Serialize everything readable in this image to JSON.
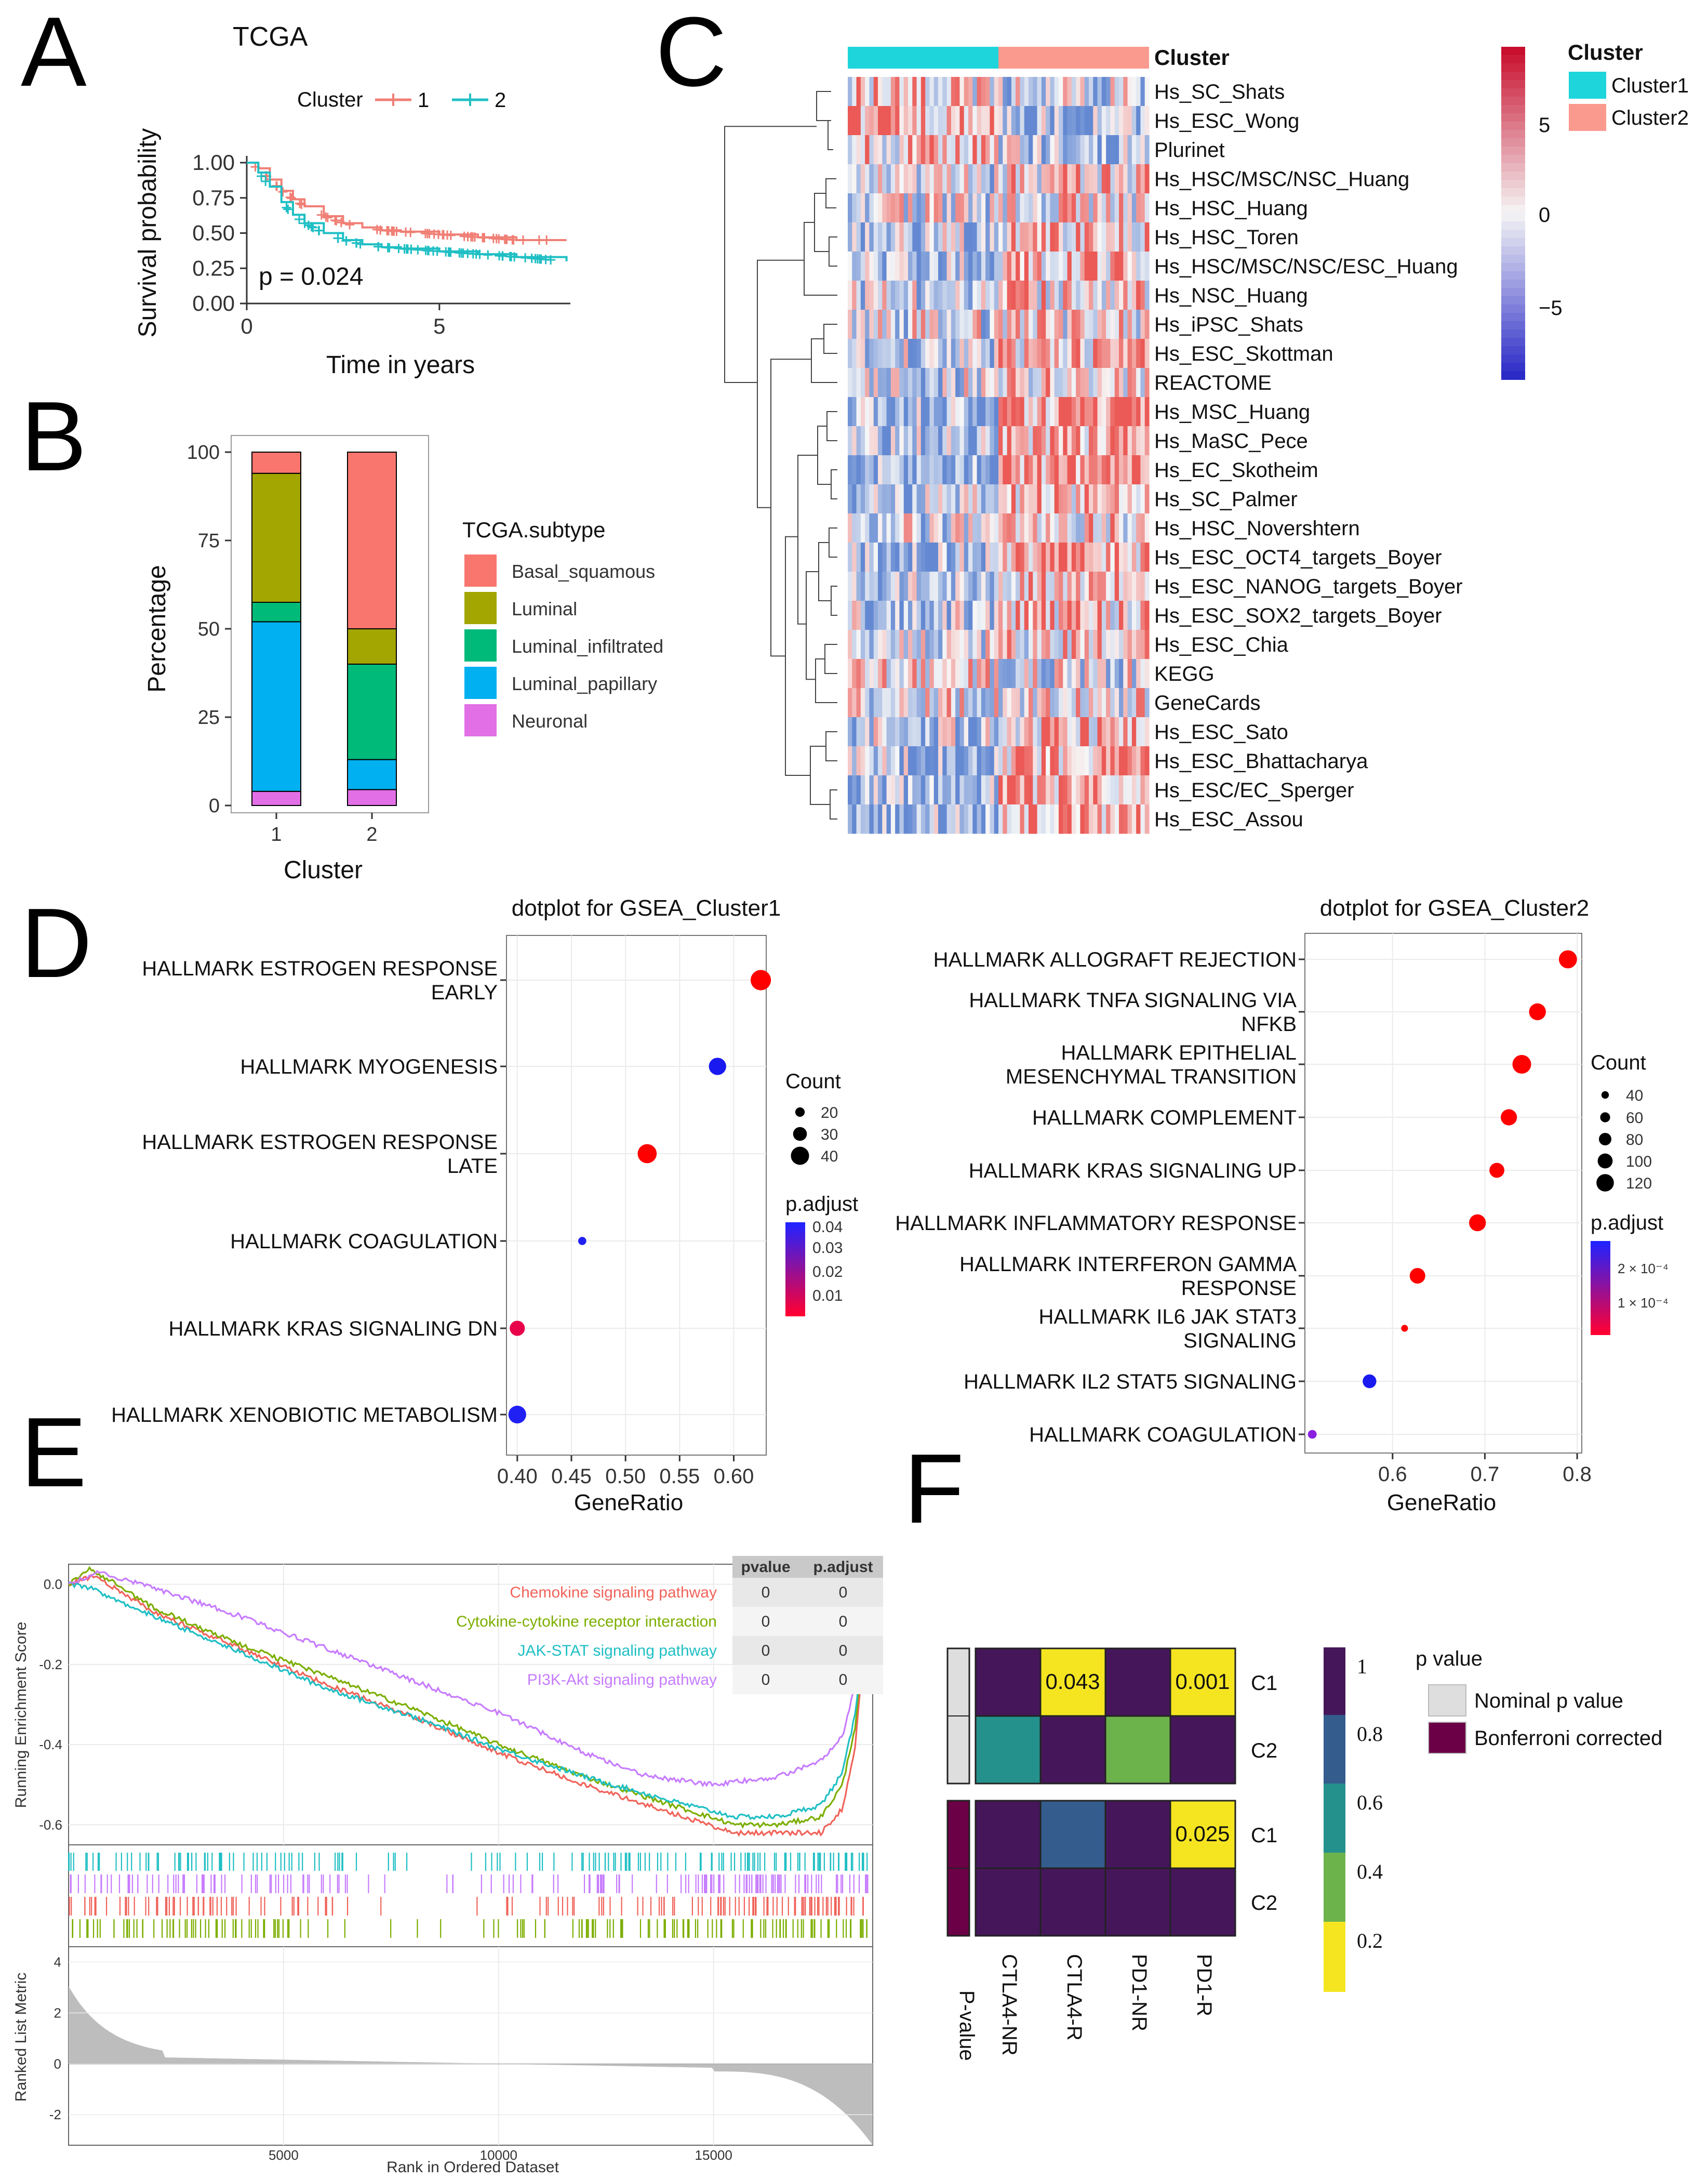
{
  "panels": {
    "a": {
      "letter": "A",
      "title": "TCGA",
      "legend_title": "Cluster"
    },
    "b": {
      "letter": "B"
    },
    "c": {
      "letter": "C"
    },
    "d": {
      "letter": "D"
    },
    "e": {
      "letter": "E"
    },
    "f": {
      "letter": "F"
    }
  },
  "colors": {
    "cluster1": "#1FBFC4",
    "cluster2": "#F07F75",
    "red": "#FF0000",
    "blue": "#0000FF"
  },
  "chart_data": [
    {
      "id": "A",
      "type": "line",
      "title": "TCGA",
      "xlabel": "Time in years",
      "ylabel": "Survival probability",
      "xlim": [
        0,
        8.4
      ],
      "ylim": [
        0,
        1
      ],
      "xticks": [
        "0",
        "5"
      ],
      "yticks": [
        "0.00",
        "0.25",
        "0.50",
        "0.75",
        "1.00"
      ],
      "annotation": "p = 0.024",
      "legend_title": "Cluster",
      "series": [
        {
          "name": "1",
          "color": "#F07F75",
          "x": [
            0,
            0.3,
            0.6,
            0.9,
            1.2,
            1.5,
            2.0,
            2.5,
            3.0,
            3.5,
            4.0,
            5.0,
            6.0,
            7.0,
            8.3
          ],
          "y": [
            1.0,
            0.96,
            0.88,
            0.8,
            0.74,
            0.69,
            0.62,
            0.57,
            0.54,
            0.52,
            0.51,
            0.49,
            0.47,
            0.45,
            0.45
          ]
        },
        {
          "name": "2",
          "color": "#1FBFC4",
          "x": [
            0,
            0.3,
            0.6,
            0.9,
            1.2,
            1.5,
            2.0,
            2.5,
            3.0,
            3.5,
            4.0,
            5.0,
            6.0,
            7.0,
            8.3
          ],
          "y": [
            1.0,
            0.93,
            0.83,
            0.72,
            0.63,
            0.57,
            0.5,
            0.45,
            0.42,
            0.4,
            0.39,
            0.37,
            0.35,
            0.33,
            0.3
          ]
        }
      ]
    },
    {
      "id": "B",
      "type": "bar",
      "stacked": true,
      "xlabel": "Cluster",
      "ylabel": "Percentage",
      "categories": [
        "1",
        "2"
      ],
      "ylim": [
        0,
        100
      ],
      "yticks": [
        "0",
        "25",
        "50",
        "75",
        "100"
      ],
      "legend_title": "TCGA.subtype",
      "series": [
        {
          "name": "Neuronal",
          "color": "#E26FE6",
          "values": [
            4,
            4.5
          ]
        },
        {
          "name": "Luminal_papillary",
          "color": "#00B0F0",
          "values": [
            48,
            8.5
          ]
        },
        {
          "name": "Luminal_infiltrated",
          "color": "#00BA7A",
          "values": [
            5.5,
            27
          ]
        },
        {
          "name": "Luminal",
          "color": "#A3A500",
          "values": [
            36.5,
            10
          ]
        },
        {
          "name": "Basal_squamous",
          "color": "#F8766D",
          "values": [
            6,
            50
          ]
        }
      ]
    },
    {
      "id": "C",
      "type": "heatmap",
      "annotation_label": "Cluster",
      "legend_title": "Cluster",
      "legend_items": [
        {
          "name": "Cluster1",
          "color": "#1FD5DC"
        },
        {
          "name": "Cluster2",
          "color": "#FA9A8E"
        }
      ],
      "scale_ticks": [
        "5",
        "0",
        "−5"
      ],
      "rows": [
        "Hs_SC_Shats",
        "Hs_ESC_Wong",
        "Plurinet",
        "Hs_HSC/MSC/NSC_Huang",
        "Hs_HSC_Huang",
        "Hs_HSC_Toren",
        "Hs_HSC/MSC/NSC/ESC_Huang",
        "Hs_NSC_Huang",
        "Hs_iPSC_Shats",
        "Hs_ESC_Skottman",
        "REACTOME",
        "Hs_MSC_Huang",
        "Hs_MaSC_Pece",
        "Hs_EC_Skotheim",
        "Hs_SC_Palmer",
        "Hs_HSC_Novershtern",
        "Hs_ESC_OCT4_targets_Boyer",
        "Hs_ESC_NANOG_targets_Boyer",
        "Hs_ESC_SOX2_targets_Boyer",
        "Hs_ESC_Chia",
        "KEGG",
        "GeneCards",
        "Hs_ESC_Sato",
        "Hs_ESC_Bhattacharya",
        "Hs_ESC/EC_Sperger",
        "Hs_ESC_Assou"
      ],
      "row_bias": [
        -0.2,
        -0.5,
        -0.3,
        0.2,
        0.1,
        0.3,
        0.4,
        0.2,
        0.1,
        0.3,
        0.2,
        0.6,
        0.5,
        0.7,
        0.4,
        0.2,
        0.5,
        0.4,
        0.3,
        0.1,
        -0.1,
        0.0,
        0.3,
        0.5,
        0.6,
        0.6
      ]
    },
    {
      "id": "D1",
      "type": "scatter",
      "title": "dotplot for GSEA_Cluster1",
      "xlabel": "GeneRatio",
      "xlim": [
        0.39,
        0.63
      ],
      "xticks": [
        "0.40",
        "0.45",
        "0.50",
        "0.55",
        "0.60"
      ],
      "size_legend_title": "Count",
      "size_legend": [
        "20",
        "30",
        "40"
      ],
      "color_legend_title": "p.adjust",
      "color_legend": [
        "0.04",
        "0.03",
        "0.02",
        "0.01"
      ],
      "points": [
        {
          "label_lines": [
            "HALLMARK ESTROGEN RESPONSE",
            "EARLY"
          ],
          "x": 0.625,
          "count": 45,
          "color": "#FF0000"
        },
        {
          "label_lines": [
            "HALLMARK MYOGENESIS"
          ],
          "x": 0.585,
          "count": 38,
          "color": "#1A1AF0"
        },
        {
          "label_lines": [
            "HALLMARK ESTROGEN RESPONSE",
            "LATE"
          ],
          "x": 0.52,
          "count": 42,
          "color": "#FF0000"
        },
        {
          "label_lines": [
            "HALLMARK COAGULATION"
          ],
          "x": 0.46,
          "count": 17,
          "color": "#2020F5"
        },
        {
          "label_lines": [
            "HALLMARK KRAS SIGNALING DN"
          ],
          "x": 0.4,
          "count": 33,
          "color": "#E8004A"
        },
        {
          "label_lines": [
            "HALLMARK XENOBIOTIC METABOLISM"
          ],
          "x": 0.4,
          "count": 39,
          "color": "#2020F5"
        }
      ]
    },
    {
      "id": "D2",
      "type": "scatter",
      "title": "dotplot for GSEA_Cluster2",
      "xlabel": "GeneRatio",
      "xlim": [
        0.505,
        0.805
      ],
      "xticks": [
        "0.6",
        "0.7",
        "0.8"
      ],
      "size_legend_title": "Count",
      "size_legend": [
        "40",
        "60",
        "80",
        "100",
        "120"
      ],
      "color_legend_title": "p.adjust",
      "color_legend": [
        "2 × 10⁻⁴",
        "1 × 10⁻⁴"
      ],
      "points": [
        {
          "label_lines": [
            "HALLMARK ALLOGRAFT REJECTION"
          ],
          "x": 0.79,
          "count": 125,
          "color": "#FF0000"
        },
        {
          "label_lines": [
            "HALLMARK TNFA SIGNALING VIA",
            "NFKB"
          ],
          "x": 0.757,
          "count": 115,
          "color": "#FF0000"
        },
        {
          "label_lines": [
            "HALLMARK EPITHELIAL",
            "MESENCHYMAL TRANSITION"
          ],
          "x": 0.74,
          "count": 130,
          "color": "#FF0000"
        },
        {
          "label_lines": [
            "HALLMARK COMPLEMENT"
          ],
          "x": 0.726,
          "count": 110,
          "color": "#FF0000"
        },
        {
          "label_lines": [
            "HALLMARK KRAS SIGNALING UP"
          ],
          "x": 0.713,
          "count": 100,
          "color": "#FF0000"
        },
        {
          "label_lines": [
            "HALLMARK INFLAMMATORY RESPONSE"
          ],
          "x": 0.692,
          "count": 115,
          "color": "#FF0000"
        },
        {
          "label_lines": [
            "HALLMARK INTERFERON GAMMA",
            "RESPONSE"
          ],
          "x": 0.627,
          "count": 105,
          "color": "#FF0000"
        },
        {
          "label_lines": [
            "HALLMARK IL6 JAK STAT3",
            "SIGNALING"
          ],
          "x": 0.613,
          "count": 35,
          "color": "#FF0000"
        },
        {
          "label_lines": [
            "HALLMARK IL2 STAT5 SIGNALING"
          ],
          "x": 0.575,
          "count": 90,
          "color": "#1A1AF0"
        },
        {
          "label_lines": [
            "HALLMARK COAGULATION"
          ],
          "x": 0.513,
          "count": 50,
          "color": "#8A1FE0"
        }
      ]
    },
    {
      "id": "E",
      "type": "line",
      "ylabel": "Running Enrichment Score",
      "ylabel2": "Ranked List Metric",
      "xlabel": "Rank in Ordered Dataset",
      "xlim": [
        0,
        18700
      ],
      "ylim": [
        -0.65,
        0.05
      ],
      "xticks": [
        "5000",
        "10000",
        "15000"
      ],
      "yticks": [
        "0.0",
        "-0.2",
        "-0.4",
        "-0.6"
      ],
      "yticks2": [
        "4",
        "2",
        "0",
        "-2"
      ],
      "table_headers": [
        "pvalue",
        "p.adjust"
      ],
      "series": [
        {
          "name": "Chemokine signaling pathway",
          "color": "#F0635A",
          "pvalue": "0",
          "padjust": "0",
          "x": [
            0,
            600,
            2000,
            4000,
            6000,
            8000,
            10000,
            12000,
            14000,
            15500,
            16500,
            17500,
            18000,
            18300,
            18600
          ],
          "y": [
            0.0,
            0.02,
            -0.07,
            -0.16,
            -0.25,
            -0.33,
            -0.42,
            -0.5,
            -0.57,
            -0.62,
            -0.62,
            -0.62,
            -0.56,
            -0.4,
            -0.02
          ]
        },
        {
          "name": "Cytokine-cytokine receptor interaction",
          "color": "#7CAE00",
          "pvalue": "0",
          "padjust": "0",
          "x": [
            0,
            500,
            2000,
            4000,
            6000,
            8000,
            10000,
            12000,
            14000,
            15500,
            16500,
            17500,
            18000,
            18300,
            18600
          ],
          "y": [
            0.0,
            0.04,
            -0.06,
            -0.15,
            -0.23,
            -0.31,
            -0.4,
            -0.48,
            -0.55,
            -0.6,
            -0.6,
            -0.58,
            -0.5,
            -0.35,
            -0.02
          ]
        },
        {
          "name": "JAK-STAT signaling pathway",
          "color": "#1FBFC4",
          "pvalue": "0",
          "padjust": "0",
          "x": [
            0,
            500,
            2000,
            4000,
            6000,
            8000,
            10000,
            12000,
            14000,
            15500,
            16500,
            17500,
            18000,
            18300,
            18600
          ],
          "y": [
            0.0,
            -0.01,
            -0.08,
            -0.17,
            -0.26,
            -0.33,
            -0.41,
            -0.48,
            -0.54,
            -0.58,
            -0.58,
            -0.55,
            -0.47,
            -0.32,
            0.0
          ]
        },
        {
          "name": "PI3K-Akt signaling pathway",
          "color": "#C77CFF",
          "pvalue": "0",
          "padjust": "0",
          "x": [
            0,
            700,
            2000,
            4000,
            6000,
            8000,
            10000,
            12000,
            13500,
            15000,
            16500,
            17500,
            18000,
            18300,
            18600
          ],
          "y": [
            0.0,
            0.03,
            -0.01,
            -0.08,
            -0.16,
            -0.24,
            -0.32,
            -0.42,
            -0.48,
            -0.5,
            -0.48,
            -0.44,
            -0.38,
            -0.25,
            0.0
          ]
        }
      ]
    },
    {
      "id": "F",
      "type": "heatmap",
      "columns": [
        "CTLA4-NR",
        "CTLA4-R",
        "PD1-NR",
        "PD1-R"
      ],
      "row_labels": [
        "C1",
        "C2",
        "C1",
        "C2"
      ],
      "row_group_label": "P-value",
      "groups": [
        {
          "name": "Nominal p value",
          "color": "#DEDEDE"
        },
        {
          "name": "Bonferroni corrected",
          "color": "#6B0046"
        }
      ],
      "values": [
        [
          1,
          0.043,
          1,
          0.001
        ],
        [
          0.55,
          1,
          0.37,
          1
        ],
        [
          1,
          0.75,
          1,
          0.025
        ],
        [
          1,
          1,
          1,
          1
        ]
      ],
      "cell_labels": [
        [
          "",
          "0.043",
          "",
          "0.001"
        ],
        [
          "",
          "",
          "",
          ""
        ],
        [
          "",
          "",
          "",
          "0.025"
        ],
        [
          "",
          "",
          "",
          ""
        ]
      ],
      "legend_title": "p value",
      "scale_ticks": [
        "1",
        "0.8",
        "0.6",
        "0.4",
        "0.2"
      ],
      "scale_colors": [
        "#45175A",
        "#345C8C",
        "#24918C",
        "#6DB34C",
        "#F5E521"
      ]
    }
  ]
}
